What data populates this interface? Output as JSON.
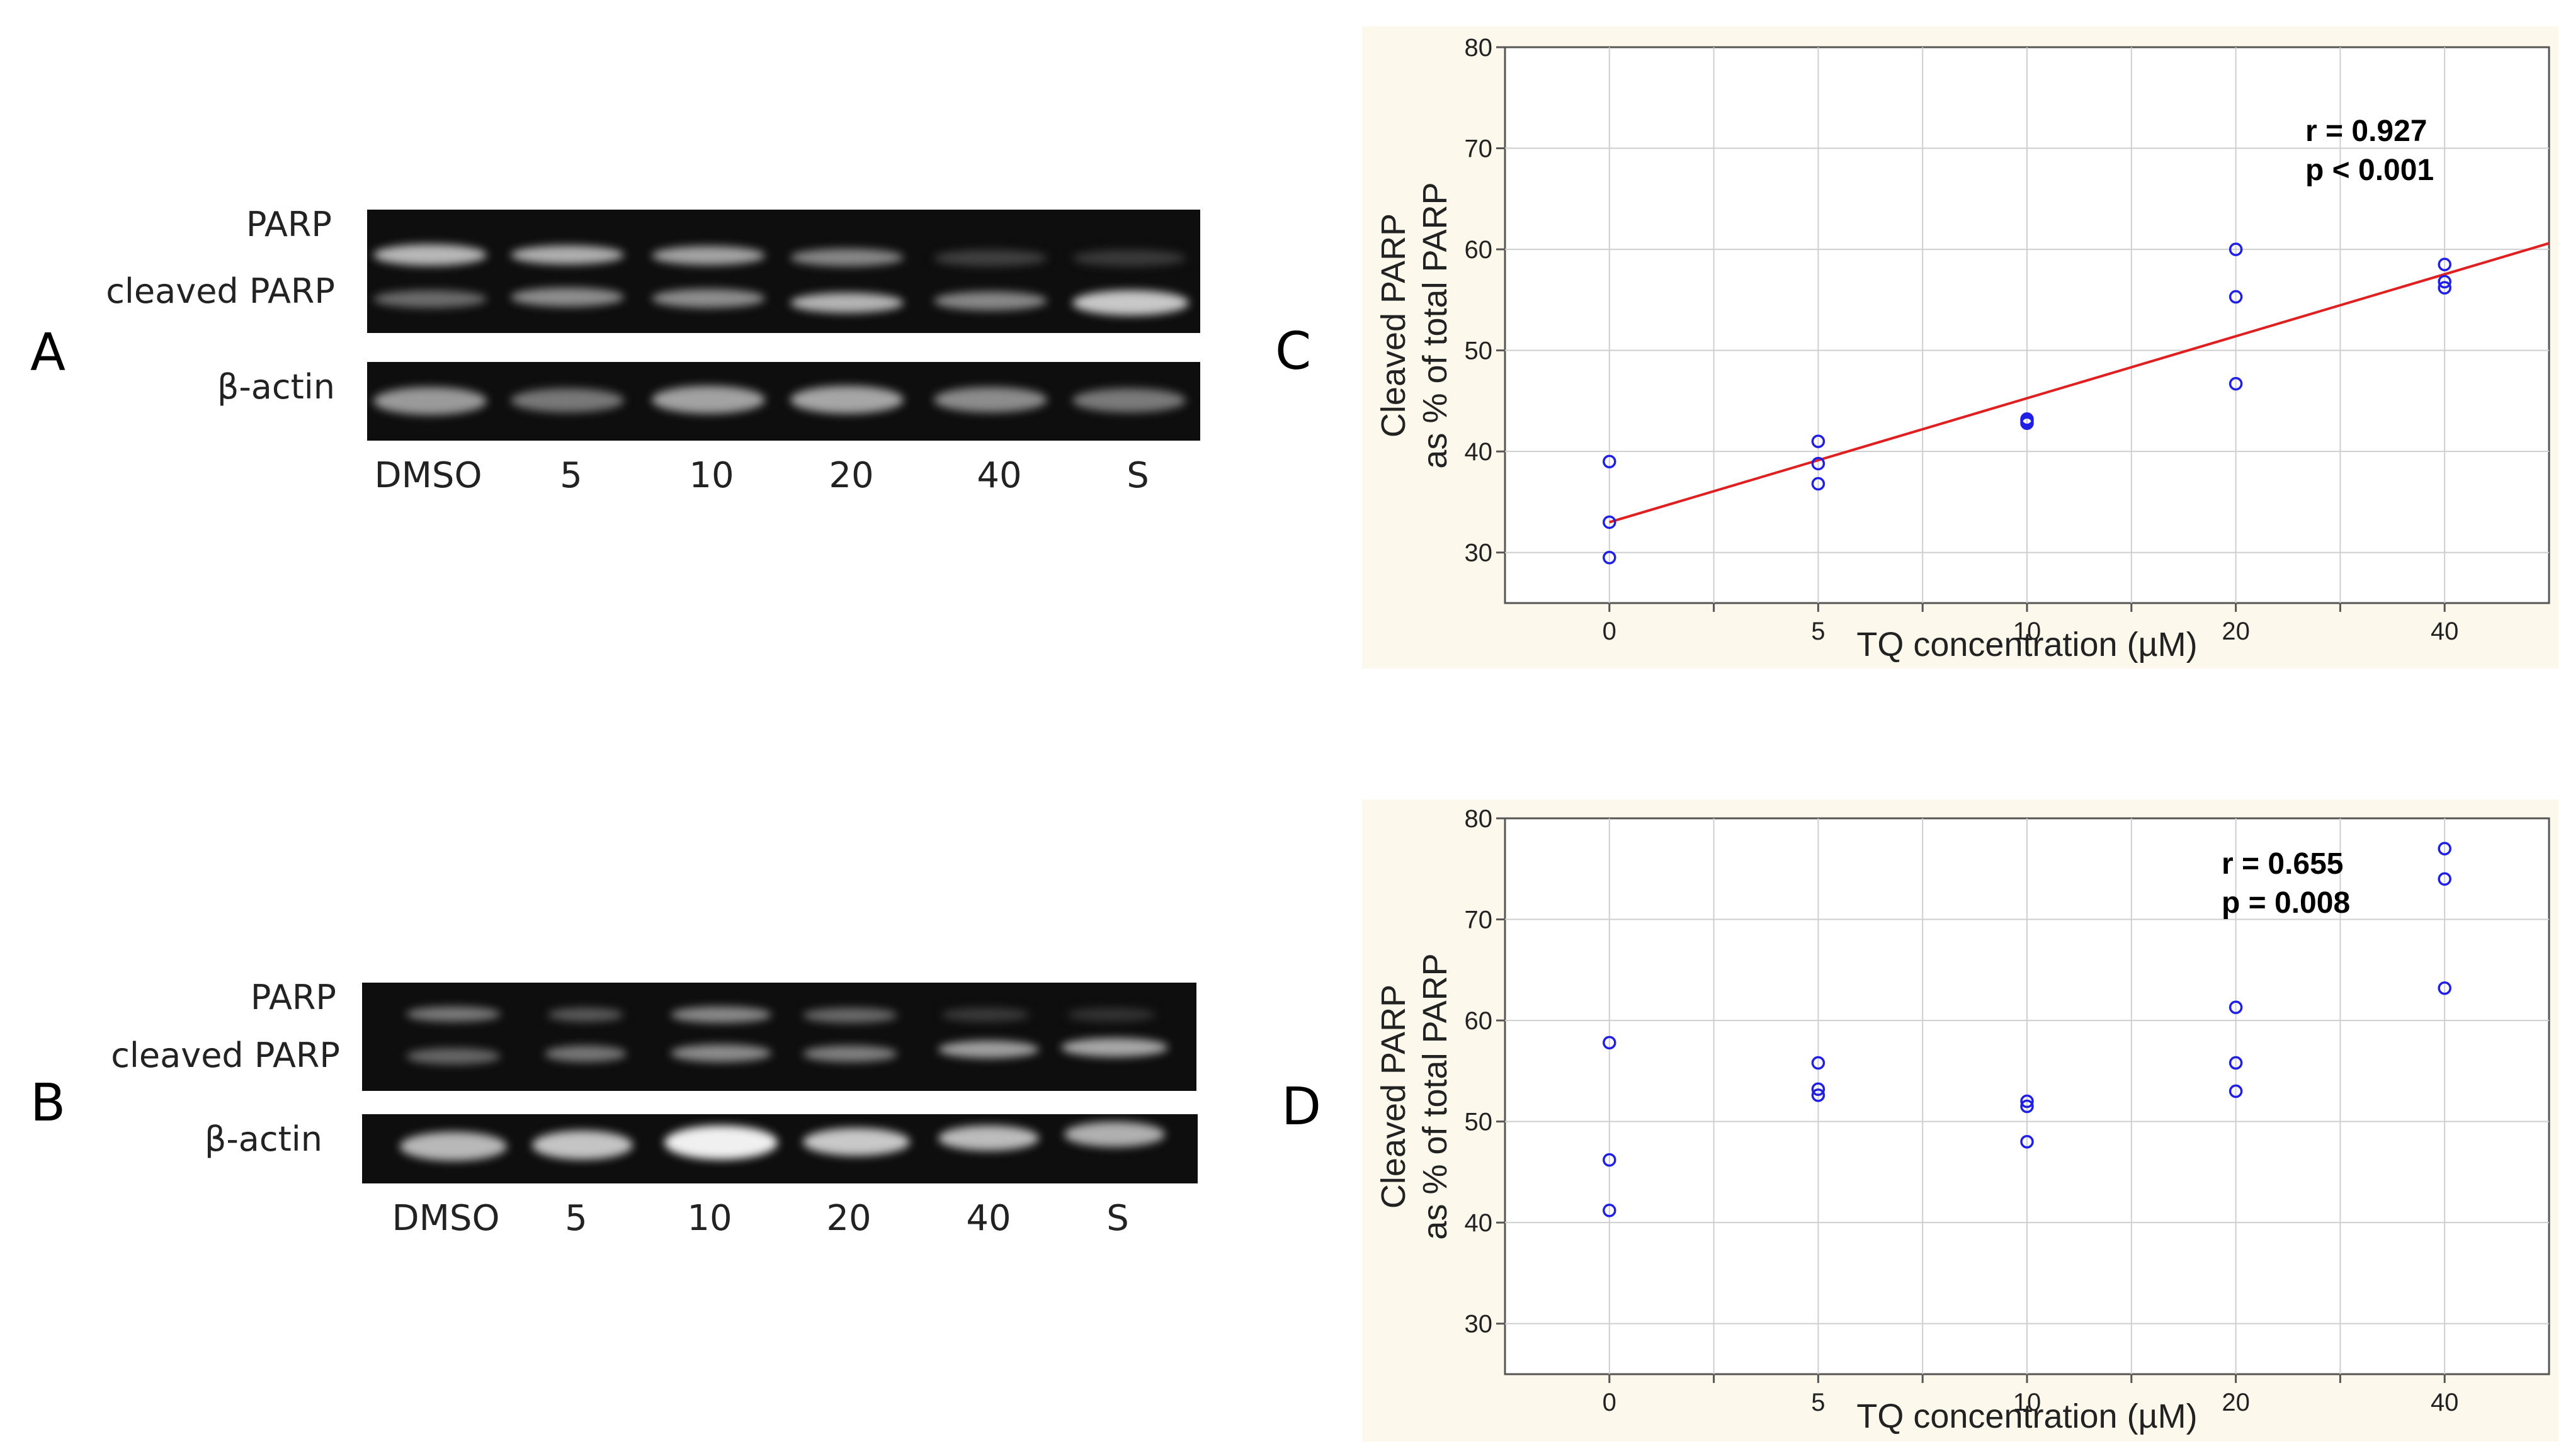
{
  "panels": {
    "A": {
      "letter": "A",
      "labels": {
        "parp": "PARP",
        "cleaved": "cleaved PARP",
        "actin": "β-actin"
      },
      "lanes": [
        "DMSO",
        "5",
        "10",
        "20",
        "40",
        "S"
      ]
    },
    "B": {
      "letter": "B",
      "labels": {
        "parp": "PARP",
        "cleaved": "cleaved PARP",
        "actin": "β-actin"
      },
      "lanes": [
        "DMSO",
        "5",
        "10",
        "20",
        "40",
        "S"
      ]
    },
    "C": {
      "letter": "C"
    },
    "D": {
      "letter": "D"
    }
  },
  "colors": {
    "plot_bg": "#fdf8ec",
    "point": "#1f1fe6",
    "fit_line": "#e02020",
    "grid": "#cfcfcf"
  },
  "chart_data": [
    {
      "id": "C",
      "type": "scatter",
      "xlabel": "TQ concentration (µM)",
      "ylabel_line1": "Cleaved PARP",
      "ylabel_line2": "as % of total PARP",
      "x_ticks": [
        "0",
        "5",
        "10",
        "20",
        "40"
      ],
      "y_ticks": [
        30,
        40,
        50,
        60,
        70,
        80
      ],
      "ylim": [
        25,
        80
      ],
      "xlim_index": [
        -0.5,
        4.5
      ],
      "annotation": [
        "r = 0.927",
        "p < 0.001"
      ],
      "points": [
        {
          "x": 0,
          "y": 39.0
        },
        {
          "x": 0,
          "y": 33.0
        },
        {
          "x": 0,
          "y": 29.5
        },
        {
          "x": 5,
          "y": 41.0
        },
        {
          "x": 5,
          "y": 38.8
        },
        {
          "x": 5,
          "y": 36.8
        },
        {
          "x": 10,
          "y": 43.2
        },
        {
          "x": 10,
          "y": 43.0
        },
        {
          "x": 10,
          "y": 42.8
        },
        {
          "x": 20,
          "y": 60.0
        },
        {
          "x": 20,
          "y": 55.3
        },
        {
          "x": 20,
          "y": 46.7
        },
        {
          "x": 40,
          "y": 58.5
        },
        {
          "x": 40,
          "y": 56.8
        },
        {
          "x": 40,
          "y": 56.2
        }
      ],
      "fit_line": {
        "x0_index": 0,
        "y0": 33.0,
        "x1_index": 4.5,
        "y1": 60.6
      }
    },
    {
      "id": "D",
      "type": "scatter",
      "xlabel": "TQ concentration (µM)",
      "ylabel_line1": "Cleaved PARP",
      "ylabel_line2": "as % of total PARP",
      "x_ticks": [
        "0",
        "5",
        "10",
        "20",
        "40"
      ],
      "y_ticks": [
        30,
        40,
        50,
        60,
        70,
        80
      ],
      "ylim": [
        25,
        80
      ],
      "xlim_index": [
        -0.5,
        4.5
      ],
      "annotation": [
        "r = 0.655",
        "p = 0.008"
      ],
      "points": [
        {
          "x": 0,
          "y": 57.8
        },
        {
          "x": 0,
          "y": 46.2
        },
        {
          "x": 0,
          "y": 41.2
        },
        {
          "x": 5,
          "y": 55.8
        },
        {
          "x": 5,
          "y": 53.2
        },
        {
          "x": 5,
          "y": 52.6
        },
        {
          "x": 10,
          "y": 52.0
        },
        {
          "x": 10,
          "y": 51.5
        },
        {
          "x": 10,
          "y": 48.0
        },
        {
          "x": 20,
          "y": 61.3
        },
        {
          "x": 20,
          "y": 55.8
        },
        {
          "x": 20,
          "y": 53.0
        },
        {
          "x": 40,
          "y": 77.0
        },
        {
          "x": 40,
          "y": 74.0
        },
        {
          "x": 40,
          "y": 63.2
        }
      ]
    }
  ]
}
